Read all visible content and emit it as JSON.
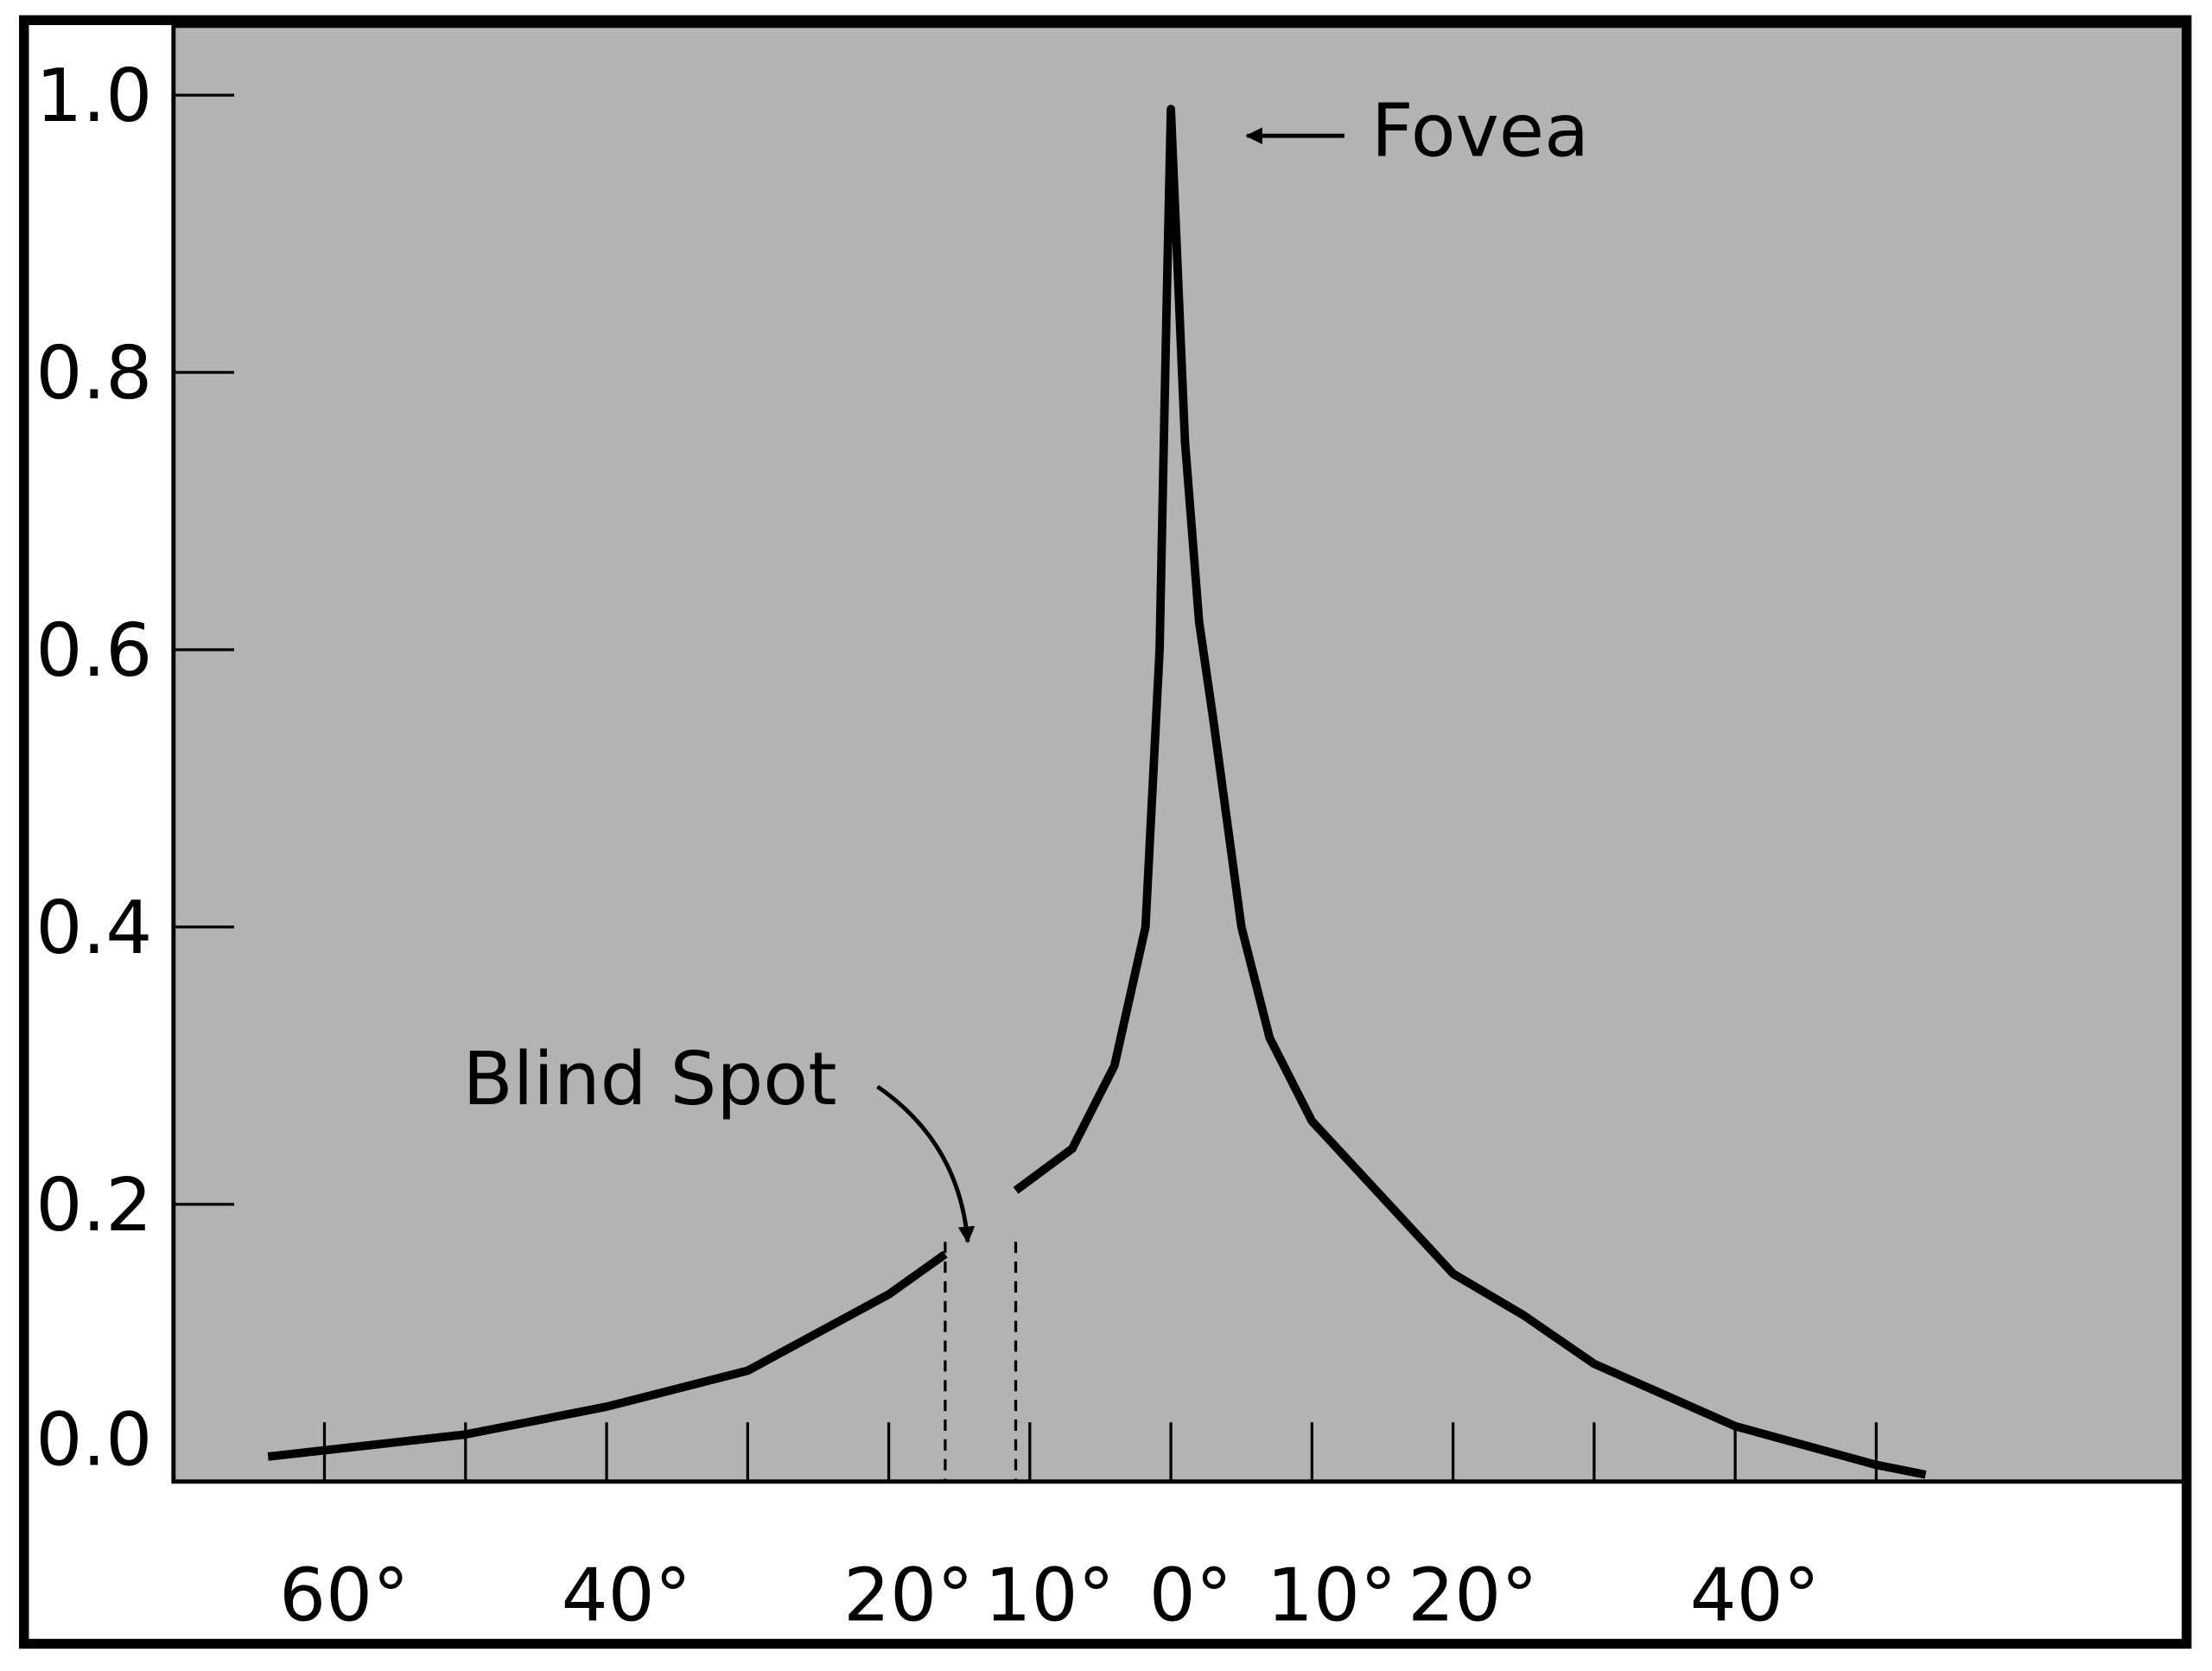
{
  "chart_data": {
    "type": "line",
    "x": [
      -64,
      -50,
      -40,
      -30,
      -20,
      -16,
      -13.5,
      -11,
      -7,
      -4,
      -1.8,
      -0.8,
      -0.3,
      0,
      1,
      2,
      3,
      5,
      7,
      10,
      15,
      20,
      25,
      30,
      40,
      50,
      53.5
    ],
    "values": [
      0.018,
      0.034,
      0.054,
      0.08,
      0.135,
      0.164,
      null,
      0.21,
      0.24,
      0.3,
      0.4,
      0.6,
      0.85,
      0.99,
      0.75,
      0.62,
      0.55,
      0.4,
      0.32,
      0.26,
      0.205,
      0.15,
      0.12,
      0.085,
      0.04,
      0.012,
      0.005
    ],
    "color": "#000000",
    "xlim": [
      -70.7,
      71.8
    ],
    "ylim": [
      0,
      1.05
    ],
    "xticks": [
      {
        "value": -60,
        "label": "60°"
      },
      {
        "value": -40,
        "label": "40°"
      },
      {
        "value": -20,
        "label": "20°"
      },
      {
        "value": -10,
        "label": "10°"
      },
      {
        "value": 0,
        "label": "0°"
      },
      {
        "value": 10,
        "label": "10°"
      },
      {
        "value": 20,
        "label": "20°"
      },
      {
        "value": 40,
        "label": "40°"
      }
    ],
    "xminorticks": [
      -50,
      -30,
      30,
      50
    ],
    "yticks": [
      {
        "value": 0,
        "label": "0.0"
      },
      {
        "value": 0.2,
        "label": "0.2"
      },
      {
        "value": 0.4,
        "label": "0.4"
      },
      {
        "value": 0.6,
        "label": "0.6"
      },
      {
        "value": 0.8,
        "label": "0.8"
      },
      {
        "value": 1,
        "label": "1.0"
      }
    ],
    "blind_spot_x": [
      -16,
      -11
    ],
    "annotations": [
      "Fovea",
      "Blind Spot"
    ]
  }
}
